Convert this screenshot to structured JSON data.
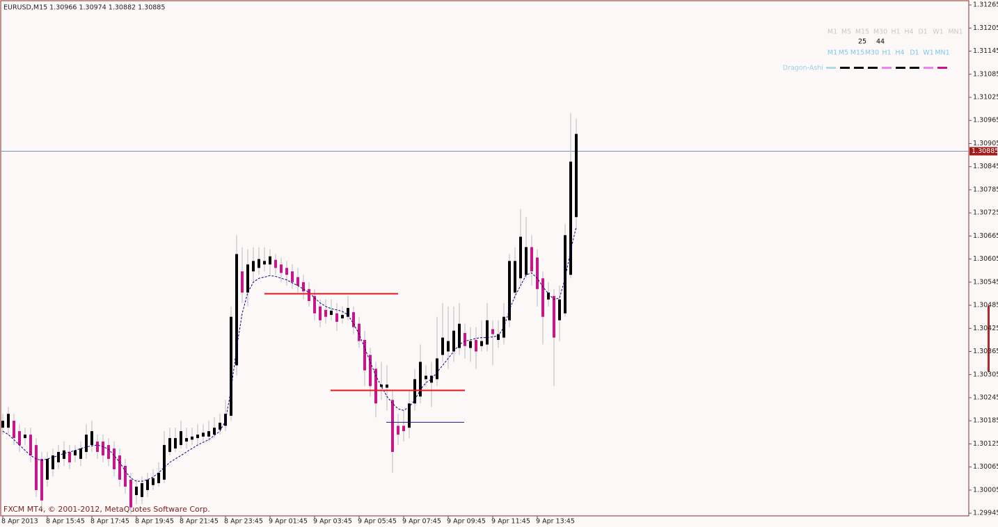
{
  "chart_data": {
    "type": "candlestick",
    "title": "EURUSD,M15  1.30966 1.30974 1.30882 1.30885",
    "footer": "FXCM MT4, © 2001-2012, MetaQuotes Software Corp.",
    "categories": [
      "8 Apr 2013",
      null,
      null,
      null,
      null,
      null,
      null,
      null,
      "8 Apr 15:45",
      null,
      null,
      null,
      null,
      null,
      null,
      null,
      "8 Apr 17:45",
      null,
      null,
      null,
      null,
      null,
      null,
      null,
      "8 Apr 19:45",
      null,
      null,
      null,
      null,
      null,
      null,
      null,
      "8 Apr 21:45",
      null,
      null,
      null,
      null,
      null,
      null,
      null,
      "8 Apr 23:45",
      null,
      null,
      null,
      null,
      null,
      null,
      null,
      "9 Apr 01:45",
      null,
      null,
      null,
      null,
      null,
      null,
      null,
      "9 Apr 03:45",
      null,
      null,
      null,
      null,
      null,
      null,
      null,
      "9 Apr 05:45",
      null,
      null,
      null,
      null,
      null,
      null,
      null,
      "9 Apr 07:45",
      null,
      null,
      null,
      null,
      null,
      null,
      null,
      "9 Apr 09:45",
      null,
      null,
      null,
      null,
      null,
      null,
      null,
      "9 Apr 11:45",
      null,
      null,
      null,
      null,
      null,
      null,
      null,
      "9 Apr 13:45",
      null,
      null,
      null,
      null,
      null,
      null,
      null
    ],
    "open": [
      1.30167,
      1.30167,
      1.30185,
      1.30158,
      1.3014,
      1.30149,
      1.30122,
      1.30086,
      1.30032,
      1.30059,
      1.30077,
      1.30086,
      1.30104,
      1.30095,
      1.30086,
      1.30104,
      1.30122,
      1.30131,
      1.30131,
      1.30122,
      1.30113,
      1.30095,
      1.30068,
      1.30032,
      1.29992,
      1.29987,
      1.30005,
      1.30018,
      1.30023,
      1.30032,
      1.30104,
      1.30113,
      1.30122,
      1.30131,
      1.30136,
      1.3014,
      1.30144,
      1.30144,
      1.30149,
      1.30162,
      1.30172,
      1.30198,
      1.30329,
      1.30573,
      1.30518,
      1.30573,
      1.30582,
      1.30591,
      1.30591,
      1.30603,
      1.30591,
      1.30582,
      1.30573,
      1.30558,
      1.30545,
      1.30527,
      1.30509,
      1.30482,
      1.30473,
      1.3046,
      1.30464,
      1.30451,
      1.30455,
      1.30467,
      1.30437,
      1.30395,
      1.30356,
      1.3032,
      1.30273,
      1.30271,
      1.30239,
      1.30172,
      1.30172,
      1.30167,
      1.3023,
      1.30248,
      1.30293,
      1.30284,
      1.30293,
      1.30356,
      1.30365,
      1.30365,
      1.30374,
      1.30413,
      1.30374,
      1.30395,
      1.30379,
      1.30383,
      1.30423,
      1.30395,
      1.30401,
      1.30446,
      1.30518,
      1.30555,
      1.30564,
      1.30636,
      1.30609,
      1.30555,
      1.305,
      1.30509,
      1.30446,
      1.30464,
      1.30564,
      1.30714
    ],
    "high": [
      1.30203,
      1.30221,
      1.30203,
      1.30176,
      1.30167,
      1.30167,
      1.3014,
      1.30104,
      1.30104,
      1.30113,
      1.30122,
      1.30131,
      1.30122,
      1.30122,
      1.30131,
      1.30176,
      1.30185,
      1.30149,
      1.30149,
      1.3014,
      1.30131,
      1.30113,
      1.30086,
      1.3005,
      1.30032,
      1.30041,
      1.3005,
      1.30059,
      1.30077,
      1.30158,
      1.30167,
      1.30167,
      1.30185,
      1.30167,
      1.30167,
      1.30176,
      1.30176,
      1.30185,
      1.30194,
      1.30203,
      1.30239,
      1.30482,
      1.30667,
      1.30636,
      1.3063,
      1.30636,
      1.30636,
      1.30636,
      1.3063,
      1.30618,
      1.30609,
      1.306,
      1.30591,
      1.30582,
      1.30564,
      1.30545,
      1.30527,
      1.305,
      1.305,
      1.305,
      1.30491,
      1.30482,
      1.30509,
      1.30482,
      1.30455,
      1.30419,
      1.30374,
      1.30338,
      1.30338,
      1.30329,
      1.30266,
      1.30203,
      1.30212,
      1.30266,
      1.3032,
      1.30383,
      1.30329,
      1.30338,
      1.30455,
      1.30491,
      1.30482,
      1.30482,
      1.30491,
      1.30437,
      1.30428,
      1.30428,
      1.30446,
      1.30491,
      1.30446,
      1.30446,
      1.30491,
      1.30618,
      1.30636,
      1.30735,
      1.30714,
      1.30667,
      1.3063,
      1.30573,
      1.30545,
      1.30527,
      1.30536,
      1.30696,
      1.30984,
      1.3097
    ],
    "low": [
      1.30149,
      1.30149,
      1.30122,
      1.30104,
      1.30122,
      1.30077,
      1.29987,
      1.2996,
      1.30014,
      1.30041,
      1.30059,
      1.30068,
      1.30059,
      1.30077,
      1.30068,
      1.30086,
      1.30104,
      1.30086,
      1.30077,
      1.30068,
      1.30041,
      1.30014,
      1.29996,
      1.29942,
      1.29969,
      1.29969,
      1.29987,
      1.30005,
      1.30014,
      1.30023,
      1.30095,
      1.30104,
      1.30113,
      1.30113,
      1.30122,
      1.30122,
      1.30131,
      1.30131,
      1.3014,
      1.30149,
      1.30158,
      1.30185,
      1.30302,
      1.30491,
      1.30482,
      1.30545,
      1.30564,
      1.30573,
      1.30564,
      1.30564,
      1.30545,
      1.30536,
      1.30527,
      1.30518,
      1.305,
      1.30482,
      1.30446,
      1.30428,
      1.30437,
      1.30446,
      1.30419,
      1.30437,
      1.30446,
      1.3041,
      1.30374,
      1.30275,
      1.30248,
      1.30194,
      1.30239,
      1.30212,
      1.3005,
      1.30122,
      1.30131,
      1.3014,
      1.30212,
      1.3023,
      1.30275,
      1.30221,
      1.30275,
      1.30338,
      1.3032,
      1.30338,
      1.30356,
      1.30347,
      1.30338,
      1.3032,
      1.30365,
      1.30365,
      1.30329,
      1.30374,
      1.30383,
      1.30428,
      1.305,
      1.30536,
      1.30555,
      1.30536,
      1.30482,
      1.30383,
      1.30482,
      1.30275,
      1.30392,
      1.30455,
      1.30555,
      1.30681
    ],
    "close": [
      1.30185,
      1.30203,
      1.3014,
      1.30122,
      1.30149,
      1.30095,
      1.30005,
      1.29978,
      1.30086,
      1.30095,
      1.30104,
      1.30108,
      1.30077,
      1.30108,
      1.30113,
      1.30149,
      1.30158,
      1.30104,
      1.30095,
      1.30086,
      1.30059,
      1.30032,
      1.30014,
      1.2996,
      1.30014,
      1.30023,
      1.30032,
      1.30036,
      1.3005,
      1.30122,
      1.3014,
      1.3014,
      1.30158,
      1.3014,
      1.30144,
      1.30149,
      1.30154,
      1.30158,
      1.30167,
      1.3018,
      1.30203,
      1.30455,
      1.30618,
      1.30518,
      1.30591,
      1.306,
      1.30605,
      1.306,
      1.30612,
      1.30582,
      1.30569,
      1.30564,
      1.30545,
      1.30536,
      1.30521,
      1.30496,
      1.30464,
      1.30446,
      1.30455,
      1.30471,
      1.30442,
      1.3046,
      1.30478,
      1.30428,
      1.30392,
      1.30316,
      1.30275,
      1.3023,
      1.30279,
      1.30279,
      1.30104,
      1.30149,
      1.30158,
      1.3023,
      1.30293,
      1.30338,
      1.30302,
      1.30302,
      1.30347,
      1.30401,
      1.30392,
      1.30419,
      1.30437,
      1.30379,
      1.30392,
      1.30365,
      1.30392,
      1.30446,
      1.3041,
      1.3041,
      1.30455,
      1.306,
      1.306,
      1.30663,
      1.30636,
      1.30573,
      1.30527,
      1.30455,
      1.30518,
      1.30401,
      1.305,
      1.30667,
      1.30858,
      1.3093
    ],
    "ma_values": [
      1.30158,
      1.30149,
      1.30136,
      1.30122,
      1.30108,
      1.30095,
      1.30086,
      1.30082,
      1.30086,
      1.3009,
      1.30095,
      1.301,
      1.30104,
      1.30108,
      1.30113,
      1.30117,
      1.3012,
      1.30122,
      1.30118,
      1.30111,
      1.30095,
      1.30077,
      1.30054,
      1.30036,
      1.30028,
      1.30028,
      1.30032,
      1.30039,
      1.3005,
      1.30064,
      1.30077,
      1.30086,
      1.30095,
      1.30104,
      1.30113,
      1.30122,
      1.30129,
      1.30136,
      1.30147,
      1.30158,
      1.30185,
      1.30266,
      1.30374,
      1.30464,
      1.30518,
      1.30545,
      1.30555,
      1.30558,
      1.30562,
      1.3056,
      1.30555,
      1.30551,
      1.30543,
      1.30536,
      1.30527,
      1.30518,
      1.30504,
      1.30491,
      1.30482,
      1.30476,
      1.30473,
      1.30469,
      1.3046,
      1.30437,
      1.3041,
      1.30374,
      1.30338,
      1.30302,
      1.30275,
      1.30248,
      1.3023,
      1.30216,
      1.30212,
      1.30221,
      1.30239,
      1.30266,
      1.30284,
      1.30293,
      1.30311,
      1.30329,
      1.30347,
      1.30365,
      1.30383,
      1.30392,
      1.30395,
      1.30399,
      1.30401,
      1.30401,
      1.30403,
      1.30406,
      1.30428,
      1.30473,
      1.30509,
      1.30536,
      1.30564,
      1.30569,
      1.30555,
      1.30533,
      1.30515,
      1.305,
      1.30504,
      1.30555,
      1.30627,
      1.30689
    ],
    "up_color": "#000000",
    "down_color": "#c8168a",
    "wick_color": "#b8b8b8",
    "ma_color": "#00008b",
    "levels": [
      {
        "value": 1.30515,
        "color": "#e8141e"
      },
      {
        "value": 1.30264,
        "color": "#e8141e"
      },
      {
        "value": 1.30181,
        "color": "#1a1a6e"
      }
    ],
    "current_price": 1.30885,
    "current_line_color": "#7c8fc0",
    "current_label_color": "#a11b1b",
    "ylim": [
      1.29938,
      1.31276
    ],
    "yticks": [
      1.29945,
      1.30005,
      1.30065,
      1.30125,
      1.30185,
      1.30245,
      1.30305,
      1.30365,
      1.30425,
      1.30485,
      1.30545,
      1.30605,
      1.30665,
      1.30725,
      1.30785,
      1.30845,
      1.30905,
      1.30965,
      1.31025,
      1.31085,
      1.31145,
      1.31205,
      1.31265
    ],
    "indicator": {
      "name": "Dragon-Ashi",
      "timeframes": [
        "M1",
        "M5",
        "M15",
        "M30",
        "H1",
        "H4",
        "D1",
        "W1",
        "MN1"
      ],
      "counts": [
        null,
        null,
        25,
        44,
        null,
        null,
        null,
        null,
        null
      ],
      "colors": [
        "#add8e6",
        "#000000",
        "#000000",
        "#000000",
        "#ee82ee",
        "#000000",
        "#000000",
        "#ee82ee",
        "#c71585"
      ]
    }
  }
}
